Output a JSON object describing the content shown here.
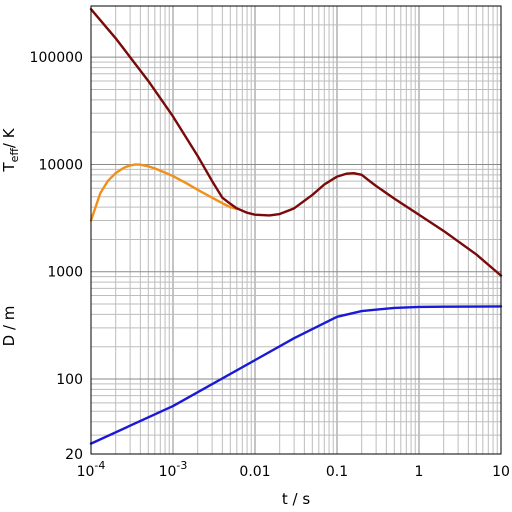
{
  "chart_data": {
    "type": "line",
    "x_scale": "log",
    "y_scale": "log",
    "xlim": [
      0.0001,
      10
    ],
    "ylim": [
      20,
      300000
    ],
    "grid": true,
    "xlabel": "t / s",
    "ylabels": {
      "upper": {
        "main": "T",
        "subscript": "eff",
        "suffix": "/ K"
      },
      "lower": "D / m"
    },
    "x_ticks": [
      {
        "value": 0.0001,
        "base": "10",
        "exp": "-4"
      },
      {
        "value": 0.001,
        "base": "10",
        "exp": "-3"
      },
      {
        "value": 0.01,
        "label": "0.01"
      },
      {
        "value": 0.1,
        "label": "0.1"
      },
      {
        "value": 1,
        "label": "1"
      },
      {
        "value": 10,
        "label": "10"
      }
    ],
    "y_ticks": [
      {
        "value": 20,
        "label": "20"
      },
      {
        "value": 100,
        "label": "100"
      },
      {
        "value": 1000,
        "label": "1000"
      },
      {
        "value": 10000,
        "label": "10000"
      },
      {
        "value": 100000,
        "label": "100000"
      }
    ],
    "series": [
      {
        "color": "#f0901a",
        "x": [
          0.0001,
          0.00013,
          0.00016,
          0.0002,
          0.00025,
          0.0003,
          0.00035,
          0.0004,
          0.0005,
          0.0006,
          0.0008,
          0.001,
          0.0015,
          0.002,
          0.003,
          0.004,
          0.005,
          0.006
        ],
        "y": [
          3000,
          5400,
          7000,
          8300,
          9300,
          9800,
          10000,
          9950,
          9600,
          9200,
          8400,
          7800,
          6600,
          5800,
          4900,
          4350,
          4000,
          3850
        ]
      },
      {
        "color": "#7a0a0a",
        "x": [
          0.0001,
          0.0002,
          0.0005,
          0.001,
          0.002,
          0.003,
          0.004,
          0.005,
          0.006,
          0.008,
          0.01,
          0.015,
          0.02,
          0.03,
          0.05,
          0.07,
          0.1,
          0.13,
          0.16,
          0.2,
          0.25,
          0.3,
          0.5,
          1,
          2,
          5,
          10
        ],
        "y": [
          280000,
          150000,
          60000,
          28000,
          12000,
          7000,
          4900,
          4300,
          3900,
          3550,
          3400,
          3350,
          3450,
          3900,
          5200,
          6500,
          7700,
          8200,
          8300,
          8000,
          7000,
          6300,
          4800,
          3400,
          2400,
          1450,
          920
        ]
      },
      {
        "color": "#1a1ad6",
        "x": [
          0.0001,
          0.001,
          0.01,
          0.03,
          0.1,
          0.2,
          0.5,
          1,
          2,
          5,
          10
        ],
        "y": [
          25,
          56,
          150,
          240,
          380,
          430,
          460,
          470,
          472,
          474,
          475
        ]
      }
    ]
  }
}
